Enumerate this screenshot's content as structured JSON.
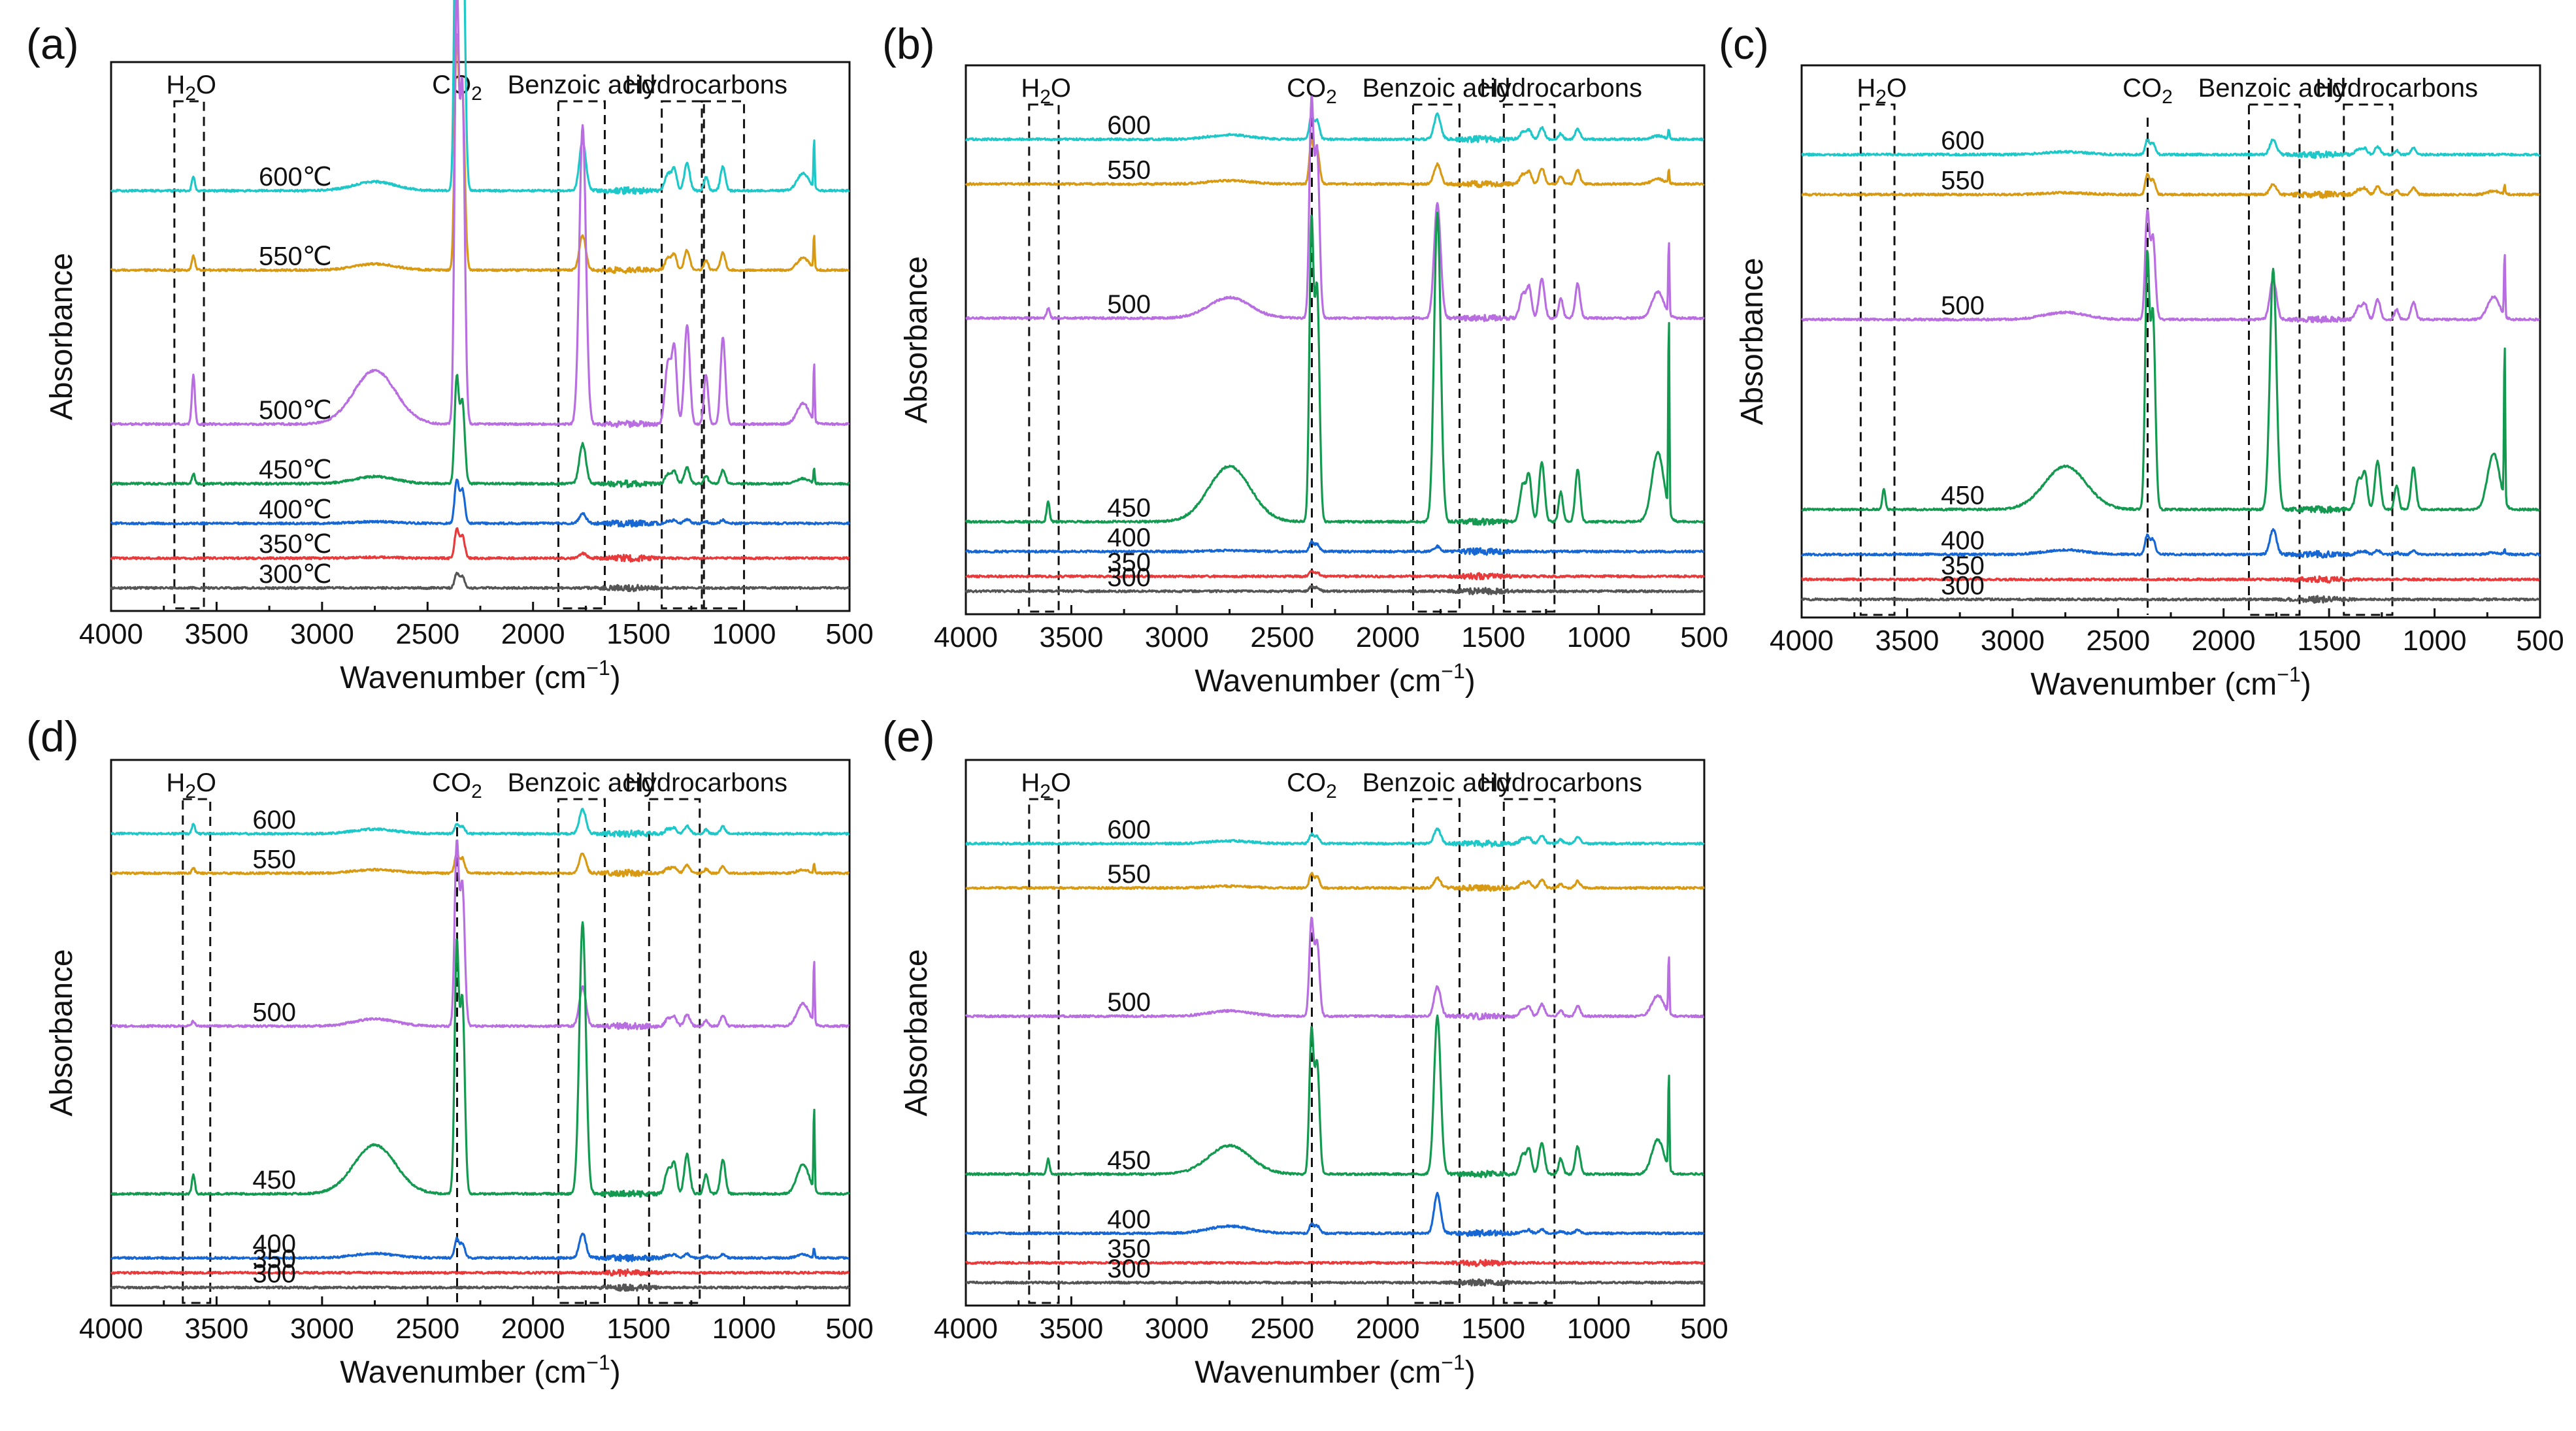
{
  "figure": {
    "colors": {
      "600": "#1ec8c8",
      "550": "#d89a12",
      "500": "#b86ee0",
      "450": "#149a50",
      "400": "#1666d4",
      "350": "#e83a3a",
      "300": "#555555"
    },
    "xlabel_main": "Wavenumber (cm",
    "xlabel_sup": "−1",
    "xlabel_end": ")",
    "ylabel": "Absorbance"
  },
  "chart_data": [
    {
      "panel": "(a)",
      "type": "line",
      "xlim": [
        4000,
        500
      ],
      "xticks": [
        4000,
        3500,
        3000,
        2500,
        2000,
        1500,
        1000,
        500
      ],
      "xlabel": "Wavenumber (cm−1)",
      "ylabel": "Absorbance",
      "temperature_unit": "℃",
      "series": [
        {
          "name": "600",
          "label": "600℃",
          "baseline": 0.82,
          "peaks": {
            "co2": 0.85,
            "benzoic": 0.1,
            "hc": 0.07,
            "h2o": 0.03,
            "sharp700": 0.1
          }
        },
        {
          "name": "550",
          "label": "550℃",
          "baseline": 0.66,
          "peaks": {
            "co2": 0.48,
            "benzoic": 0.07,
            "hc": 0.05,
            "h2o": 0.03,
            "sharp700": 0.07
          }
        },
        {
          "name": "500",
          "label": "500℃",
          "baseline": 0.35,
          "peaks": {
            "co2": 0.9,
            "benzoic": 0.6,
            "hc": 0.25,
            "h2o": 0.1,
            "sharp700": 0.12
          }
        },
        {
          "name": "450",
          "label": "450℃",
          "baseline": 0.23,
          "peaks": {
            "co2": 0.22,
            "benzoic": 0.08,
            "hc": 0.04,
            "h2o": 0.02,
            "sharp700": 0.03
          }
        },
        {
          "name": "400",
          "label": "400℃",
          "baseline": 0.15,
          "peaks": {
            "co2": 0.09,
            "benzoic": 0.02,
            "hc": 0.01,
            "h2o": 0.0,
            "sharp700": 0.0
          }
        },
        {
          "name": "350",
          "label": "350℃",
          "baseline": 0.08,
          "peaks": {
            "co2": 0.06,
            "benzoic": 0.01,
            "hc": 0.0,
            "h2o": 0.0,
            "sharp700": 0.0
          }
        },
        {
          "name": "300",
          "label": "300℃",
          "baseline": 0.02,
          "peaks": {
            "co2": 0.03,
            "benzoic": 0.0,
            "hc": 0.0,
            "h2o": 0.0,
            "sharp700": 0.0
          }
        }
      ],
      "regions": [
        {
          "name": "H2O",
          "range": [
            3700,
            3560
          ]
        },
        {
          "name": "Benzoic acid",
          "range": [
            1880,
            1660
          ]
        },
        {
          "name": "Hydrocarbons",
          "range": [
            1390,
            1190
          ]
        },
        {
          "name": "Hydrocarbons",
          "range": [
            1200,
            1000
          ]
        }
      ]
    },
    {
      "panel": "(b)",
      "type": "line",
      "xlim": [
        4000,
        500
      ],
      "xticks": [
        4000,
        3500,
        3000,
        2500,
        2000,
        1500,
        1000,
        500
      ],
      "xlabel": "Wavenumber (cm−1)",
      "ylabel": "Absorbance",
      "series": [
        {
          "name": "600",
          "label": "600",
          "baseline": 0.93,
          "peaks": {
            "co2": 0.05,
            "benzoic": 0.05,
            "hc": 0.03,
            "h2o": 0.0,
            "sharp700": 0.02
          }
        },
        {
          "name": "550",
          "label": "550",
          "baseline": 0.84,
          "peaks": {
            "co2": 0.09,
            "benzoic": 0.04,
            "hc": 0.04,
            "h2o": 0.0,
            "sharp700": 0.03
          }
        },
        {
          "name": "500",
          "label": "500",
          "baseline": 0.57,
          "peaks": {
            "co2": 0.45,
            "benzoic": 0.23,
            "hc": 0.1,
            "h2o": 0.02,
            "sharp700": 0.15
          }
        },
        {
          "name": "450",
          "label": "450",
          "baseline": 0.16,
          "peaks": {
            "co2": 0.62,
            "benzoic": 0.62,
            "hc": 0.15,
            "h2o": 0.04,
            "sharp700": 0.4
          }
        },
        {
          "name": "400",
          "label": "400",
          "baseline": 0.1,
          "peaks": {
            "co2": 0.02,
            "benzoic": 0.01,
            "hc": 0.0,
            "h2o": 0.0,
            "sharp700": 0.0
          }
        },
        {
          "name": "350",
          "label": "350",
          "baseline": 0.05,
          "peaks": {
            "co2": 0.01,
            "benzoic": 0.0,
            "hc": 0.0,
            "h2o": 0.0,
            "sharp700": 0.0
          }
        },
        {
          "name": "300",
          "label": "300",
          "baseline": 0.02,
          "peaks": {
            "co2": 0.01,
            "benzoic": 0.0,
            "hc": 0.0,
            "h2o": 0.0,
            "sharp700": 0.0
          }
        }
      ],
      "regions": [
        {
          "name": "H2O",
          "range": [
            3700,
            3560
          ]
        },
        {
          "name": "CO2",
          "range": [
            2360,
            2360
          ]
        },
        {
          "name": "Benzoic acid",
          "range": [
            1880,
            1660
          ]
        },
        {
          "name": "Hydrocarbons",
          "range": [
            1450,
            1210
          ]
        }
      ]
    },
    {
      "panel": "(c)",
      "type": "line",
      "xlim": [
        4000,
        500
      ],
      "xticks": [
        4000,
        3500,
        3000,
        2500,
        2000,
        1500,
        1000,
        500
      ],
      "xlabel": "Wavenumber (cm−1)",
      "ylabel": "Absorbance",
      "series": [
        {
          "name": "600",
          "label": "600",
          "baseline": 0.9,
          "peaks": {
            "co2": 0.03,
            "benzoic": 0.03,
            "hc": 0.02,
            "h2o": 0.0,
            "sharp700": 0.0
          }
        },
        {
          "name": "550",
          "label": "550",
          "baseline": 0.82,
          "peaks": {
            "co2": 0.04,
            "benzoic": 0.02,
            "hc": 0.02,
            "h2o": 0.0,
            "sharp700": 0.02
          }
        },
        {
          "name": "500",
          "label": "500",
          "baseline": 0.57,
          "peaks": {
            "co2": 0.22,
            "benzoic": 0.08,
            "hc": 0.05,
            "h2o": 0.0,
            "sharp700": 0.13
          }
        },
        {
          "name": "450",
          "label": "450",
          "baseline": 0.19,
          "peaks": {
            "co2": 0.52,
            "benzoic": 0.48,
            "hc": 0.12,
            "h2o": 0.04,
            "sharp700": 0.32
          }
        },
        {
          "name": "400",
          "label": "400",
          "baseline": 0.1,
          "peaks": {
            "co2": 0.04,
            "benzoic": 0.05,
            "hc": 0.01,
            "h2o": 0.0,
            "sharp700": 0.01
          }
        },
        {
          "name": "350",
          "label": "350",
          "baseline": 0.05,
          "peaks": {
            "co2": 0.0,
            "benzoic": 0.0,
            "hc": 0.0,
            "h2o": 0.0,
            "sharp700": 0.0
          }
        },
        {
          "name": "300",
          "label": "300",
          "baseline": 0.01,
          "peaks": {
            "co2": 0.0,
            "benzoic": 0.0,
            "hc": 0.0,
            "h2o": 0.0,
            "sharp700": 0.0
          }
        }
      ],
      "regions": [
        {
          "name": "H2O",
          "range": [
            3720,
            3560
          ]
        },
        {
          "name": "CO2",
          "range": [
            2360,
            2360
          ]
        },
        {
          "name": "Benzoic acid",
          "range": [
            1880,
            1640
          ]
        },
        {
          "name": "Hydrocarbons",
          "range": [
            1430,
            1200
          ]
        }
      ]
    },
    {
      "panel": "(d)",
      "type": "line",
      "xlim": [
        4000,
        500
      ],
      "xticks": [
        4000,
        3500,
        3000,
        2500,
        2000,
        1500,
        1000,
        500
      ],
      "xlabel": "Wavenumber (cm−1)",
      "ylabel": "Absorbance",
      "series": [
        {
          "name": "600",
          "label": "600",
          "baseline": 0.93,
          "peaks": {
            "co2": 0.02,
            "benzoic": 0.05,
            "hc": 0.02,
            "h2o": 0.02,
            "sharp700": 0.0
          }
        },
        {
          "name": "550",
          "label": "550",
          "baseline": 0.85,
          "peaks": {
            "co2": 0.04,
            "benzoic": 0.04,
            "hc": 0.02,
            "h2o": 0.01,
            "sharp700": 0.02
          }
        },
        {
          "name": "500",
          "label": "500",
          "baseline": 0.54,
          "peaks": {
            "co2": 0.38,
            "benzoic": 0.08,
            "hc": 0.03,
            "h2o": 0.01,
            "sharp700": 0.13
          }
        },
        {
          "name": "450",
          "label": "450",
          "baseline": 0.2,
          "peaks": {
            "co2": 0.52,
            "benzoic": 0.55,
            "hc": 0.1,
            "h2o": 0.04,
            "sharp700": 0.17
          }
        },
        {
          "name": "400",
          "label": "400",
          "baseline": 0.07,
          "peaks": {
            "co2": 0.04,
            "benzoic": 0.05,
            "hc": 0.01,
            "h2o": 0.0,
            "sharp700": 0.02
          }
        },
        {
          "name": "350",
          "label": "350",
          "baseline": 0.04,
          "peaks": {
            "co2": 0.0,
            "benzoic": 0.0,
            "hc": 0.0,
            "h2o": 0.0,
            "sharp700": 0.0
          }
        },
        {
          "name": "300",
          "label": "300",
          "baseline": 0.01,
          "peaks": {
            "co2": 0.0,
            "benzoic": 0.0,
            "hc": 0.0,
            "h2o": 0.0,
            "sharp700": 0.0
          }
        }
      ],
      "regions": [
        {
          "name": "H2O",
          "range": [
            3660,
            3530
          ]
        },
        {
          "name": "CO2",
          "range": [
            2360,
            2360
          ]
        },
        {
          "name": "Benzoic acid",
          "range": [
            1880,
            1660
          ]
        },
        {
          "name": "Hydrocarbons",
          "range": [
            1450,
            1210
          ]
        }
      ]
    },
    {
      "panel": "(e)",
      "type": "line",
      "xlim": [
        4000,
        500
      ],
      "xticks": [
        4000,
        3500,
        3000,
        2500,
        2000,
        1500,
        1000,
        500
      ],
      "xlabel": "Wavenumber (cm−1)",
      "ylabel": "Absorbance",
      "series": [
        {
          "name": "600",
          "label": "600",
          "baseline": 0.91,
          "peaks": {
            "co2": 0.02,
            "benzoic": 0.03,
            "hc": 0.02,
            "h2o": 0.0,
            "sharp700": 0.0
          }
        },
        {
          "name": "550",
          "label": "550",
          "baseline": 0.82,
          "peaks": {
            "co2": 0.03,
            "benzoic": 0.02,
            "hc": 0.02,
            "h2o": 0.0,
            "sharp700": 0.0
          }
        },
        {
          "name": "500",
          "label": "500",
          "baseline": 0.56,
          "peaks": {
            "co2": 0.2,
            "benzoic": 0.06,
            "hc": 0.03,
            "h2o": 0.0,
            "sharp700": 0.12
          }
        },
        {
          "name": "450",
          "label": "450",
          "baseline": 0.24,
          "peaks": {
            "co2": 0.3,
            "benzoic": 0.32,
            "hc": 0.08,
            "h2o": 0.03,
            "sharp700": 0.2
          }
        },
        {
          "name": "400",
          "label": "400",
          "baseline": 0.12,
          "peaks": {
            "co2": 0.02,
            "benzoic": 0.08,
            "hc": 0.01,
            "h2o": 0.0,
            "sharp700": 0.0
          }
        },
        {
          "name": "350",
          "label": "350",
          "baseline": 0.06,
          "peaks": {
            "co2": 0.0,
            "benzoic": 0.0,
            "hc": 0.0,
            "h2o": 0.0,
            "sharp700": 0.0
          }
        },
        {
          "name": "300",
          "label": "300",
          "baseline": 0.02,
          "peaks": {
            "co2": 0.0,
            "benzoic": 0.0,
            "hc": 0.0,
            "h2o": 0.0,
            "sharp700": 0.0
          }
        }
      ],
      "regions": [
        {
          "name": "H2O",
          "range": [
            3700,
            3560
          ]
        },
        {
          "name": "CO2",
          "range": [
            2360,
            2360
          ]
        },
        {
          "name": "Benzoic acid",
          "range": [
            1880,
            1660
          ]
        },
        {
          "name": "Hydrocarbons",
          "range": [
            1450,
            1210
          ]
        }
      ]
    }
  ]
}
